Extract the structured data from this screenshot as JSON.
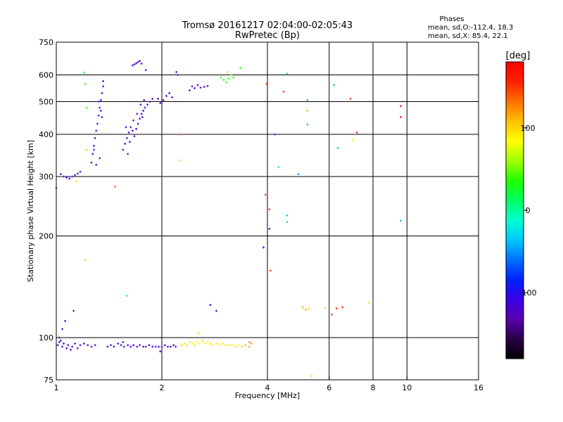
{
  "chart_data": {
    "type": "scatter",
    "title": "Tromsø 20161217 02:04:00-02:05:43",
    "subtitle": "RwPretec (Bp)",
    "phases_header": "Phases",
    "phase_stats": [
      "mean, sd,O:-112.4, 18.3",
      "mean, sd,X:  85.4, 22.1"
    ],
    "xlabel": "Frequency [MHz]",
    "ylabel": "Stationary phase Virtual Height [km]",
    "x_scale": "log",
    "y_scale": "log",
    "xlim": [
      1,
      16
    ],
    "ylim": [
      75,
      750
    ],
    "x_ticks": [
      {
        "value": 1,
        "label": "1"
      },
      {
        "value": 2,
        "label": "2"
      },
      {
        "value": 4,
        "label": "4"
      },
      {
        "value": 6,
        "label": "6"
      },
      {
        "value": 8,
        "label": "8"
      },
      {
        "value": 10,
        "label": "10"
      },
      {
        "value": 16,
        "label": "16"
      }
    ],
    "x_gridlines": [
      2,
      4,
      6,
      8,
      10
    ],
    "y_ticks": [
      {
        "value": 75,
        "label": "75"
      },
      {
        "value": 100,
        "label": "100"
      },
      {
        "value": 200,
        "label": "200"
      },
      {
        "value": 300,
        "label": "300"
      },
      {
        "value": 400,
        "label": "400"
      },
      {
        "value": 500,
        "label": "500"
      },
      {
        "value": 600,
        "label": "600"
      },
      {
        "value": 750,
        "label": "750"
      }
    ],
    "y_gridlines": [
      100,
      200,
      300,
      400,
      500,
      600
    ],
    "grid": true,
    "colorbar": {
      "label": "[deg]",
      "range": [
        -180,
        180
      ],
      "ticks": [
        {
          "value": 100,
          "label": "100"
        },
        {
          "value": 0,
          "label": "0"
        },
        {
          "value": -100,
          "label": "-100"
        }
      ],
      "colors": [
        "#000000",
        "#2a0048",
        "#5a00b0",
        "#3a00e6",
        "#0020ff",
        "#0070ff",
        "#00c8ff",
        "#00ffd0",
        "#00ff60",
        "#20ff00",
        "#a0ff00",
        "#ffff00",
        "#ffc000",
        "#ff7000",
        "#ff2000",
        "#ff0000"
      ]
    },
    "points": [
      {
        "x": 1.01,
        "y": 95,
        "phase": -115
      },
      {
        "x": 1.02,
        "y": 97,
        "phase": -110
      },
      {
        "x": 1.04,
        "y": 94,
        "phase": -112
      },
      {
        "x": 1.05,
        "y": 96,
        "phase": -118
      },
      {
        "x": 1.07,
        "y": 93,
        "phase": -108
      },
      {
        "x": 1.08,
        "y": 95,
        "phase": -115
      },
      {
        "x": 1.1,
        "y": 92,
        "phase": -120
      },
      {
        "x": 1.11,
        "y": 94,
        "phase": -112
      },
      {
        "x": 1.13,
        "y": 96,
        "phase": -105
      },
      {
        "x": 1.15,
        "y": 93,
        "phase": -110
      },
      {
        "x": 1.17,
        "y": 95,
        "phase": -117
      },
      {
        "x": 1.2,
        "y": 96,
        "phase": -113
      },
      {
        "x": 1.23,
        "y": 95,
        "phase": -109
      },
      {
        "x": 1.26,
        "y": 94,
        "phase": -116
      },
      {
        "x": 1.29,
        "y": 95,
        "phase": -110
      },
      {
        "x": 1.02,
        "y": 100,
        "phase": -118
      },
      {
        "x": 1.04,
        "y": 106,
        "phase": -115
      },
      {
        "x": 1.06,
        "y": 112,
        "phase": -112
      },
      {
        "x": 1.12,
        "y": 120,
        "phase": -118
      },
      {
        "x": 1.03,
        "y": 98,
        "phase": -114
      },
      {
        "x": 1.4,
        "y": 94,
        "phase": -112
      },
      {
        "x": 1.43,
        "y": 95,
        "phase": -115
      },
      {
        "x": 1.46,
        "y": 94,
        "phase": -108
      },
      {
        "x": 1.5,
        "y": 96,
        "phase": -114
      },
      {
        "x": 1.53,
        "y": 95,
        "phase": -118
      },
      {
        "x": 1.56,
        "y": 94,
        "phase": -110
      },
      {
        "x": 1.6,
        "y": 95,
        "phase": -112
      },
      {
        "x": 1.63,
        "y": 94,
        "phase": -116
      },
      {
        "x": 1.66,
        "y": 95,
        "phase": -109
      },
      {
        "x": 1.7,
        "y": 94,
        "phase": -113
      },
      {
        "x": 1.73,
        "y": 95,
        "phase": -111
      },
      {
        "x": 1.77,
        "y": 94,
        "phase": -115
      },
      {
        "x": 1.8,
        "y": 94,
        "phase": -119
      },
      {
        "x": 1.84,
        "y": 95,
        "phase": -110
      },
      {
        "x": 1.88,
        "y": 94,
        "phase": -112
      },
      {
        "x": 1.92,
        "y": 94,
        "phase": -118
      },
      {
        "x": 1.96,
        "y": 94,
        "phase": -110
      },
      {
        "x": 2.0,
        "y": 94,
        "phase": -114
      },
      {
        "x": 2.04,
        "y": 95,
        "phase": -112
      },
      {
        "x": 2.08,
        "y": 94,
        "phase": -116
      },
      {
        "x": 2.12,
        "y": 94,
        "phase": -110
      },
      {
        "x": 2.16,
        "y": 95,
        "phase": -113
      },
      {
        "x": 2.19,
        "y": 94,
        "phase": -111
      },
      {
        "x": 1.98,
        "y": 91,
        "phase": -118
      },
      {
        "x": 1.55,
        "y": 97,
        "phase": -116
      },
      {
        "x": 2.28,
        "y": 95,
        "phase": 95
      },
      {
        "x": 2.32,
        "y": 96,
        "phase": 90
      },
      {
        "x": 2.36,
        "y": 95,
        "phase": 98
      },
      {
        "x": 2.4,
        "y": 97,
        "phase": 92
      },
      {
        "x": 2.44,
        "y": 96,
        "phase": 88
      },
      {
        "x": 2.48,
        "y": 95,
        "phase": 95
      },
      {
        "x": 2.52,
        "y": 97,
        "phase": 90
      },
      {
        "x": 2.56,
        "y": 96,
        "phase": 86
      },
      {
        "x": 2.61,
        "y": 98,
        "phase": 94
      },
      {
        "x": 2.65,
        "y": 96,
        "phase": 92
      },
      {
        "x": 2.7,
        "y": 97,
        "phase": 88
      },
      {
        "x": 2.75,
        "y": 96,
        "phase": 95
      },
      {
        "x": 2.8,
        "y": 95,
        "phase": 90
      },
      {
        "x": 2.86,
        "y": 96,
        "phase": 92
      },
      {
        "x": 2.92,
        "y": 95,
        "phase": 88
      },
      {
        "x": 2.98,
        "y": 96,
        "phase": 94
      },
      {
        "x": 3.04,
        "y": 95,
        "phase": 90
      },
      {
        "x": 3.1,
        "y": 95,
        "phase": 86
      },
      {
        "x": 3.17,
        "y": 95,
        "phase": 92
      },
      {
        "x": 3.24,
        "y": 94,
        "phase": 98
      },
      {
        "x": 3.31,
        "y": 95,
        "phase": 90
      },
      {
        "x": 3.38,
        "y": 94,
        "phase": 100
      },
      {
        "x": 3.46,
        "y": 95,
        "phase": 110
      },
      {
        "x": 3.55,
        "y": 94,
        "phase": 118
      },
      {
        "x": 3.6,
        "y": 96,
        "phase": 122
      },
      {
        "x": 3.55,
        "y": 97,
        "phase": 125
      },
      {
        "x": 2.55,
        "y": 103,
        "phase": 100
      },
      {
        "x": 1.0,
        "y": 278,
        "phase": -115
      },
      {
        "x": 1.03,
        "y": 305,
        "phase": -112
      },
      {
        "x": 1.05,
        "y": 300,
        "phase": -118
      },
      {
        "x": 1.07,
        "y": 298,
        "phase": -110
      },
      {
        "x": 1.09,
        "y": 296,
        "phase": -115
      },
      {
        "x": 1.11,
        "y": 300,
        "phase": -113
      },
      {
        "x": 1.13,
        "y": 303,
        "phase": -117
      },
      {
        "x": 1.15,
        "y": 306,
        "phase": -109
      },
      {
        "x": 1.17,
        "y": 310,
        "phase": -112
      },
      {
        "x": 1.14,
        "y": 290,
        "phase": 80
      },
      {
        "x": 1.26,
        "y": 330,
        "phase": -118
      },
      {
        "x": 1.27,
        "y": 350,
        "phase": -115
      },
      {
        "x": 1.28,
        "y": 370,
        "phase": -112
      },
      {
        "x": 1.29,
        "y": 390,
        "phase": -116
      },
      {
        "x": 1.3,
        "y": 410,
        "phase": -110
      },
      {
        "x": 1.31,
        "y": 430,
        "phase": -114
      },
      {
        "x": 1.32,
        "y": 455,
        "phase": -118
      },
      {
        "x": 1.33,
        "y": 480,
        "phase": -112
      },
      {
        "x": 1.34,
        "y": 505,
        "phase": -115
      },
      {
        "x": 1.35,
        "y": 530,
        "phase": -110
      },
      {
        "x": 1.36,
        "y": 555,
        "phase": -116
      },
      {
        "x": 1.3,
        "y": 325,
        "phase": -113
      },
      {
        "x": 1.33,
        "y": 340,
        "phase": -117
      },
      {
        "x": 1.28,
        "y": 360,
        "phase": -114
      },
      {
        "x": 1.35,
        "y": 450,
        "phase": -119
      },
      {
        "x": 1.34,
        "y": 470,
        "phase": -111
      },
      {
        "x": 1.32,
        "y": 500,
        "phase": -115
      },
      {
        "x": 1.55,
        "y": 360,
        "phase": -118
      },
      {
        "x": 1.57,
        "y": 375,
        "phase": -112
      },
      {
        "x": 1.59,
        "y": 390,
        "phase": -115
      },
      {
        "x": 1.61,
        "y": 405,
        "phase": -110
      },
      {
        "x": 1.63,
        "y": 420,
        "phase": -116
      },
      {
        "x": 1.65,
        "y": 410,
        "phase": -113
      },
      {
        "x": 1.67,
        "y": 395,
        "phase": -117
      },
      {
        "x": 1.69,
        "y": 415,
        "phase": -112
      },
      {
        "x": 1.71,
        "y": 430,
        "phase": -118
      },
      {
        "x": 1.73,
        "y": 445,
        "phase": -114
      },
      {
        "x": 1.75,
        "y": 460,
        "phase": -110
      },
      {
        "x": 1.77,
        "y": 470,
        "phase": -115
      },
      {
        "x": 1.79,
        "y": 480,
        "phase": -112
      },
      {
        "x": 1.82,
        "y": 490,
        "phase": -116
      },
      {
        "x": 1.85,
        "y": 500,
        "phase": -113
      },
      {
        "x": 1.88,
        "y": 510,
        "phase": -117
      },
      {
        "x": 1.62,
        "y": 380,
        "phase": -119
      },
      {
        "x": 1.66,
        "y": 440,
        "phase": -111
      },
      {
        "x": 1.7,
        "y": 460,
        "phase": -115
      },
      {
        "x": 1.74,
        "y": 490,
        "phase": -112
      },
      {
        "x": 1.78,
        "y": 505,
        "phase": -116
      },
      {
        "x": 1.6,
        "y": 350,
        "phase": -114
      },
      {
        "x": 1.58,
        "y": 420,
        "phase": -110
      },
      {
        "x": 1.76,
        "y": 450,
        "phase": -118
      },
      {
        "x": 1.65,
        "y": 640,
        "phase": -112
      },
      {
        "x": 1.67,
        "y": 645,
        "phase": -115
      },
      {
        "x": 1.69,
        "y": 650,
        "phase": -118
      },
      {
        "x": 1.71,
        "y": 655,
        "phase": -110
      },
      {
        "x": 1.73,
        "y": 660,
        "phase": -114
      },
      {
        "x": 1.75,
        "y": 648,
        "phase": -116
      },
      {
        "x": 1.8,
        "y": 620,
        "phase": -112
      },
      {
        "x": 1.95,
        "y": 510,
        "phase": -115
      },
      {
        "x": 1.98,
        "y": 495,
        "phase": -112
      },
      {
        "x": 2.02,
        "y": 505,
        "phase": -118
      },
      {
        "x": 2.06,
        "y": 520,
        "phase": -110
      },
      {
        "x": 2.1,
        "y": 530,
        "phase": -114
      },
      {
        "x": 2.14,
        "y": 515,
        "phase": -116
      },
      {
        "x": 2.2,
        "y": 612,
        "phase": -113
      },
      {
        "x": 2.22,
        "y": 600,
        "phase": -117
      },
      {
        "x": 2.25,
        "y": 400,
        "phase": 150
      },
      {
        "x": 2.25,
        "y": 335,
        "phase": 100
      },
      {
        "x": 2.4,
        "y": 540,
        "phase": -112
      },
      {
        "x": 2.44,
        "y": 555,
        "phase": -115
      },
      {
        "x": 2.48,
        "y": 548,
        "phase": -110
      },
      {
        "x": 2.53,
        "y": 560,
        "phase": -118
      },
      {
        "x": 2.58,
        "y": 550,
        "phase": -114
      },
      {
        "x": 2.64,
        "y": 553,
        "phase": -116
      },
      {
        "x": 2.7,
        "y": 556,
        "phase": -112
      },
      {
        "x": 2.75,
        "y": 125,
        "phase": -113
      },
      {
        "x": 2.86,
        "y": 120,
        "phase": -118
      },
      {
        "x": 2.95,
        "y": 590,
        "phase": 35
      },
      {
        "x": 3.0,
        "y": 580,
        "phase": 30
      },
      {
        "x": 3.05,
        "y": 570,
        "phase": 40
      },
      {
        "x": 3.1,
        "y": 585,
        "phase": 38
      },
      {
        "x": 3.15,
        "y": 600,
        "phase": 45
      },
      {
        "x": 3.2,
        "y": 590,
        "phase": 32
      },
      {
        "x": 3.35,
        "y": 630,
        "phase": 42
      },
      {
        "x": 3.08,
        "y": 612,
        "phase": 95
      },
      {
        "x": 1.2,
        "y": 610,
        "phase": 30
      },
      {
        "x": 1.21,
        "y": 565,
        "phase": 35
      },
      {
        "x": 1.22,
        "y": 480,
        "phase": 40
      },
      {
        "x": 1.22,
        "y": 360,
        "phase": 110
      },
      {
        "x": 1.36,
        "y": 575,
        "phase": -115
      },
      {
        "x": 1.47,
        "y": 280,
        "phase": 140
      },
      {
        "x": 1.21,
        "y": 170,
        "phase": 100
      },
      {
        "x": 1.59,
        "y": 133,
        "phase": -20
      },
      {
        "x": 3.95,
        "y": 265,
        "phase": 150
      },
      {
        "x": 3.98,
        "y": 565,
        "phase": 150
      },
      {
        "x": 4.05,
        "y": 240,
        "phase": 150
      },
      {
        "x": 4.08,
        "y": 158,
        "phase": 150
      },
      {
        "x": 4.05,
        "y": 210,
        "phase": -115
      },
      {
        "x": 3.9,
        "y": 185,
        "phase": -115
      },
      {
        "x": 4.2,
        "y": 400,
        "phase": -115
      },
      {
        "x": 4.3,
        "y": 320,
        "phase": -20
      },
      {
        "x": 4.45,
        "y": 535,
        "phase": 150
      },
      {
        "x": 4.55,
        "y": 605,
        "phase": -40
      },
      {
        "x": 4.55,
        "y": 230,
        "phase": -40
      },
      {
        "x": 4.55,
        "y": 220,
        "phase": -40
      },
      {
        "x": 4.9,
        "y": 305,
        "phase": -50
      },
      {
        "x": 5.2,
        "y": 505,
        "phase": -40
      },
      {
        "x": 5.2,
        "y": 470,
        "phase": 110
      },
      {
        "x": 5.2,
        "y": 428,
        "phase": -40
      },
      {
        "x": 5.35,
        "y": 77,
        "phase": 100
      },
      {
        "x": 5.05,
        "y": 123,
        "phase": 110
      },
      {
        "x": 5.15,
        "y": 121,
        "phase": 115
      },
      {
        "x": 5.25,
        "y": 122,
        "phase": 100
      },
      {
        "x": 5.85,
        "y": 122,
        "phase": 100
      },
      {
        "x": 6.1,
        "y": 117,
        "phase": 150
      },
      {
        "x": 6.3,
        "y": 122,
        "phase": 160
      },
      {
        "x": 6.55,
        "y": 123,
        "phase": 150
      },
      {
        "x": 7.8,
        "y": 127,
        "phase": 100
      },
      {
        "x": 6.2,
        "y": 560,
        "phase": -40
      },
      {
        "x": 6.35,
        "y": 365,
        "phase": -40
      },
      {
        "x": 6.9,
        "y": 510,
        "phase": 150
      },
      {
        "x": 7.0,
        "y": 385,
        "phase": 100
      },
      {
        "x": 7.2,
        "y": 405,
        "phase": 150
      },
      {
        "x": 9.6,
        "y": 485,
        "phase": 165
      },
      {
        "x": 9.6,
        "y": 450,
        "phase": 165
      },
      {
        "x": 9.6,
        "y": 222,
        "phase": -40
      }
    ]
  }
}
